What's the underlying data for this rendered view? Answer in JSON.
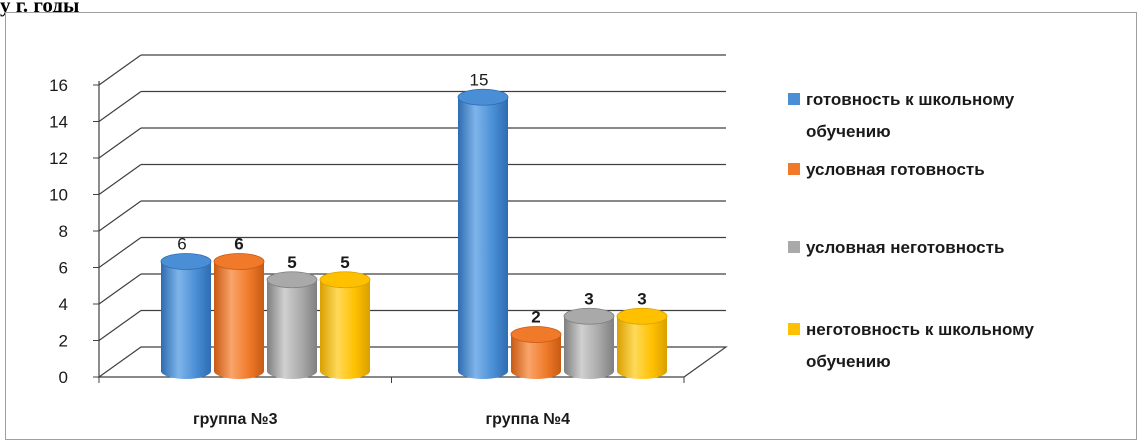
{
  "heading": "у г. годы",
  "colors": {
    "series": [
      "#4a8fd6",
      "#f07a2a",
      "#a9a9a9",
      "#ffc000"
    ],
    "series_dark": [
      "#2e6cb0",
      "#c85a12",
      "#7f7f7f",
      "#d9a000"
    ],
    "series_light": [
      "#7fb4ea",
      "#f9a46a",
      "#d0d0d0",
      "#ffd95a"
    ],
    "grid": "#404040",
    "frame": "#a0a0a0"
  },
  "chart_data": {
    "type": "bar",
    "style": "3d-cylinder",
    "categories": [
      "группа №3",
      "группа №4"
    ],
    "series": [
      {
        "name": "готовность к школьному обучению",
        "values": [
          6,
          15
        ],
        "labels": [
          "6",
          "15"
        ],
        "label_bold": false
      },
      {
        "name": "условная готовность",
        "values": [
          6,
          2
        ],
        "labels": [
          "6",
          "2"
        ],
        "label_bold": true
      },
      {
        "name": "условная неготовность",
        "values": [
          5,
          3
        ],
        "labels": [
          "5",
          "3"
        ],
        "label_bold": true
      },
      {
        "name": "неготовность к школьному обучению",
        "values": [
          5,
          3
        ],
        "labels": [
          "5",
          "3"
        ],
        "label_bold": true
      }
    ],
    "ylim": [
      0,
      16
    ],
    "yticks": [
      "0",
      "2",
      "4",
      "6",
      "8",
      "10",
      "12",
      "14",
      "16"
    ],
    "title": "",
    "xlabel": "",
    "ylabel": "",
    "grid": true,
    "legend_position": "right"
  }
}
